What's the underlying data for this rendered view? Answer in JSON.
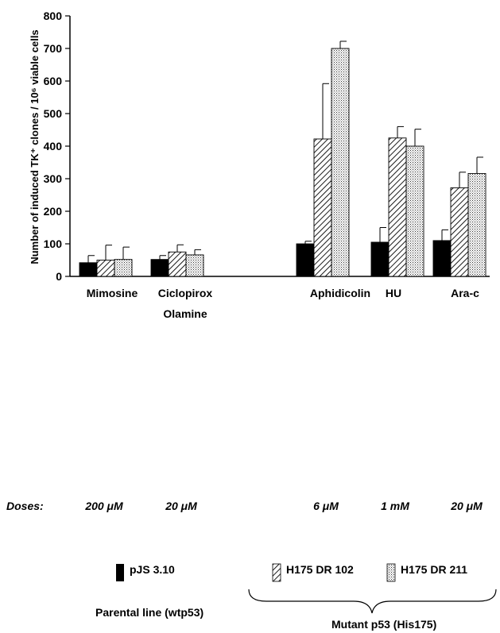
{
  "chart_data": {
    "type": "bar",
    "ylabel": "Number of induced TK⁺ clones / 10⁶ viable cells",
    "ylim": [
      0,
      800
    ],
    "yticks": [
      "0",
      "100",
      "200",
      "300",
      "400",
      "500",
      "600",
      "700",
      "800"
    ],
    "categories": [
      {
        "label": "Mimosine",
        "label2": "",
        "dose": "200 μM"
      },
      {
        "label": "Ciclopirox",
        "label2": "Olamine",
        "dose": "20 μM"
      },
      {
        "label": "Aphidicolin",
        "label2": "",
        "dose": "6 μM"
      },
      {
        "label": "HU",
        "label2": "",
        "dose": "1 mM"
      },
      {
        "label": "Ara-c",
        "label2": "",
        "dose": "20 μM"
      }
    ],
    "series": [
      {
        "name": "pJS 3.10",
        "pattern": "solid",
        "values": [
          42,
          52,
          100,
          105,
          110
        ],
        "errors": [
          22,
          12,
          8,
          45,
          33
        ]
      },
      {
        "name": "H175 DR 102",
        "pattern": "hatch",
        "values": [
          50,
          75,
          422,
          425,
          272
        ],
        "errors": [
          46,
          22,
          170,
          35,
          48
        ]
      },
      {
        "name": "H175 DR 211",
        "pattern": "dots",
        "values": [
          52,
          66,
          700,
          400,
          316
        ],
        "errors": [
          38,
          16,
          22,
          52,
          50
        ]
      }
    ],
    "doses_label": "Doses:",
    "groups": {
      "parental": "Parental line (wtp53)",
      "mutant": "Mutant p53 (His175)"
    },
    "grid": false
  }
}
